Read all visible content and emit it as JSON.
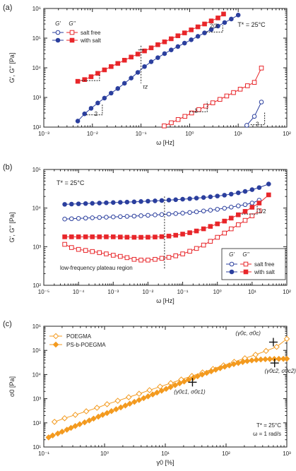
{
  "colors": {
    "blue": "#2b3f9e",
    "red": "#e8262a",
    "orange": "#f39a1f",
    "axis": "#222222"
  },
  "panels": [
    {
      "id": "a",
      "panel_label": "(a)",
      "xlabel": "ω [Hz]",
      "ylabel": "G', G'' [Pa]",
      "annotation": "T* = 25°C",
      "legend_header": [
        "G'",
        "G''"
      ],
      "legend_rows": [
        {
          "label": "salt free",
          "color": "#2b3f9e",
          "color2": "#e8262a",
          "filled": false
        },
        {
          "label": "with salt",
          "color": "#2b3f9e",
          "color2": "#e8262a",
          "filled": true
        }
      ],
      "extra_labels": [
        "τz"
      ],
      "slope_labels": [
        "2",
        "1",
        "2",
        "2/3"
      ],
      "chart_data": {
        "type": "line",
        "xscale": "log",
        "yscale": "log",
        "xlim": [
          0.001,
          100
        ],
        "ylim": [
          100,
          1000000
        ],
        "xticks": [
          "10⁻³",
          "10⁻²",
          "10⁻¹",
          "10⁰",
          "10¹",
          "10²"
        ],
        "yticks": [
          "10²",
          "10³",
          "10⁴",
          "10⁵",
          "10⁶"
        ],
        "series": [
          {
            "modulus": "G'",
            "condition": "with salt",
            "marker": "circle",
            "filled": true,
            "color": "#2b3f9e",
            "x": [
              0.005,
              0.0069,
              0.0094,
              0.0129,
              0.0177,
              0.0243,
              0.0333,
              0.0457,
              0.0627,
              0.086,
              0.118,
              0.162,
              0.222,
              0.305,
              0.418,
              0.574,
              0.787,
              1.08,
              1.48,
              2.03,
              2.79,
              3.83,
              5.25,
              7.2,
              10
            ],
            "y": [
              160,
              280,
              430,
              650,
              950,
              1400,
              2000,
              3000,
              4500,
              7000,
              11000,
              16000,
              22000,
              30000,
              40000,
              52000,
              68000,
              88000,
              115000,
              150000,
              195000,
              255000,
              335000,
              440000,
              600000
            ]
          },
          {
            "modulus": "G''",
            "condition": "with salt",
            "marker": "square",
            "filled": true,
            "color": "#e8262a",
            "x": [
              0.005,
              0.0069,
              0.0094,
              0.0129,
              0.0177,
              0.0243,
              0.0333,
              0.0457,
              0.0627,
              0.086,
              0.118,
              0.162,
              0.222,
              0.305,
              0.418,
              0.574,
              0.787,
              1.08,
              1.48,
              2.03,
              2.79,
              3.83,
              5.0
            ],
            "y": [
              3500,
              4000,
              5000,
              6500,
              8500,
              11000,
              14000,
              18000,
              23000,
              29000,
              37000,
              47000,
              60000,
              75000,
              95000,
              120000,
              150000,
              190000,
              240000,
              300000,
              380000,
              480000,
              650000
            ]
          },
          {
            "modulus": "G''",
            "condition": "salt free",
            "marker": "square",
            "filled": false,
            "color": "#e8262a",
            "x": [
              0.3,
              0.42,
              0.58,
              0.8,
              1.1,
              1.55,
              2.15,
              3.0,
              4.2,
              5.8,
              8.0,
              11,
              15.5,
              21.5,
              30
            ],
            "y": [
              110,
              140,
              180,
              230,
              300,
              390,
              510,
              660,
              860,
              1120,
              1460,
              1900,
              2480,
              3220,
              9800
            ]
          },
          {
            "modulus": "G'",
            "condition": "salt free",
            "marker": "circle",
            "filled": false,
            "color": "#2b3f9e",
            "x": [
              15,
              21.5,
              30
            ],
            "y": [
              115,
              230,
              700
            ]
          }
        ]
      }
    },
    {
      "id": "b",
      "panel_label": "(b)",
      "xlabel": "ω [Hz]",
      "ylabel": "G', G'' [Pa]",
      "annotation": "T* = 25°C",
      "region_label": "low-frequency plateau region",
      "legend_header": [
        "G'",
        "G''"
      ],
      "legend_rows": [
        {
          "label": "salt free",
          "color": "#2b3f9e",
          "color2": "#e8262a",
          "filled": false
        },
        {
          "label": "with salt",
          "color": "#2b3f9e",
          "color2": "#e8262a",
          "filled": true
        }
      ],
      "slope_labels": [
        "1/2"
      ],
      "chart_data": {
        "type": "line",
        "xscale": "log",
        "yscale": "log",
        "xlim": [
          1e-05,
          100
        ],
        "ylim": [
          100,
          100000
        ],
        "xticks": [
          "10⁻⁵",
          "10⁻⁴",
          "10⁻³",
          "10⁻²",
          "10⁻¹",
          "10⁰",
          "10¹",
          "10²"
        ],
        "yticks": [
          "10²",
          "10³",
          "10⁴",
          "10⁵"
        ],
        "series": [
          {
            "modulus": "G'",
            "condition": "with salt",
            "marker": "circle",
            "filled": true,
            "color": "#2b3f9e",
            "x": [
              4e-05,
              6.3e-05,
              0.0001,
              0.00016,
              0.00025,
              0.0004,
              0.00063,
              0.001,
              0.0016,
              0.0025,
              0.004,
              0.0063,
              0.01,
              0.016,
              0.025,
              0.04,
              0.063,
              0.1,
              0.16,
              0.25,
              0.4,
              0.63,
              1.0,
              1.6,
              2.5,
              4.0,
              6.3,
              10,
              16,
              30
            ],
            "y": [
              12500,
              12700,
              12900,
              13100,
              13300,
              13500,
              13700,
              13900,
              14100,
              14300,
              14500,
              14800,
              15100,
              15400,
              15700,
              16100,
              16500,
              17000,
              17500,
              18100,
              18800,
              19600,
              20500,
              21600,
              23000,
              24800,
              27000,
              30000,
              34000,
              42000
            ]
          },
          {
            "modulus": "G'",
            "condition": "salt free",
            "marker": "circle",
            "filled": false,
            "color": "#2b3f9e",
            "x": [
              4e-05,
              6.3e-05,
              0.0001,
              0.00016,
              0.00025,
              0.0004,
              0.00063,
              0.001,
              0.0016,
              0.0025,
              0.004,
              0.0063,
              0.01,
              0.016,
              0.025,
              0.04,
              0.063,
              0.1,
              0.16,
              0.25,
              0.4,
              0.63,
              1.0,
              1.6,
              2.5,
              4.0,
              6.3,
              10,
              16
            ],
            "y": [
              5200,
              5300,
              5400,
              5500,
              5600,
              5700,
              5800,
              5900,
              6000,
              6100,
              6200,
              6350,
              6500,
              6650,
              6800,
              7000,
              7200,
              7400,
              7700,
              8000,
              8400,
              8800,
              9300,
              9900,
              10600,
              11400,
              12300,
              13500,
              16000
            ]
          },
          {
            "modulus": "G''",
            "condition": "with salt",
            "marker": "square",
            "filled": true,
            "color": "#e8262a",
            "x": [
              4e-05,
              6.3e-05,
              0.0001,
              0.00016,
              0.00025,
              0.0004,
              0.00063,
              0.001,
              0.0016,
              0.0025,
              0.004,
              0.0063,
              0.01,
              0.016,
              0.025,
              0.04,
              0.063,
              0.1,
              0.16,
              0.25,
              0.4,
              0.63,
              1.0,
              1.6,
              2.5,
              4.0,
              6.3,
              10,
              16,
              30
            ],
            "y": [
              1800,
              1800,
              1800,
              1800,
              1800,
              1800,
              1800,
              1800,
              1780,
              1760,
              1750,
              1750,
              1760,
              1780,
              1820,
              1880,
              1980,
              2120,
              2300,
              2550,
              2900,
              3350,
              3900,
              4600,
              5500,
              6700,
              8200,
              10500,
              13500,
              22000
            ]
          },
          {
            "modulus": "G''",
            "condition": "salt free",
            "marker": "square",
            "filled": false,
            "color": "#e8262a",
            "x": [
              4e-05,
              6.3e-05,
              0.0001,
              0.00016,
              0.00025,
              0.0004,
              0.00063,
              0.001,
              0.0016,
              0.0025,
              0.004,
              0.0063,
              0.01,
              0.016,
              0.025,
              0.04,
              0.063,
              0.1,
              0.16,
              0.25,
              0.4,
              0.63,
              1.0,
              1.6,
              2.5,
              4.0,
              6.3,
              10,
              16
            ],
            "y": [
              1150,
              950,
              850,
              800,
              750,
              700,
              650,
              600,
              560,
              520,
              470,
              450,
              450,
              470,
              500,
              530,
              580,
              650,
              760,
              900,
              1100,
              1380,
              1750,
              2250,
              2900,
              3700,
              4800,
              6300,
              8500
            ]
          }
        ]
      }
    },
    {
      "id": "c",
      "panel_label": "(c)",
      "xlabel": "γ0 [%]",
      "ylabel": "σ0 [Pa]",
      "annotation_lines": [
        "T* = 25°C",
        "ω = 1 rad/s"
      ],
      "legend_rows": [
        {
          "label": "POEGMA",
          "color": "#f39a1f",
          "filled": false
        },
        {
          "label": "PS-b-POEGMA",
          "color": "#f39a1f",
          "filled": true
        }
      ],
      "point_labels": [
        "(γ0c, σ0c)",
        "(γ0c2, σ0c2)",
        "(γ0c1, σ0c1)"
      ],
      "chart_data": {
        "type": "scatter",
        "xscale": "log",
        "yscale": "log",
        "xlim": [
          0.1,
          1000
        ],
        "ylim": [
          10,
          1000000
        ],
        "xticks": [
          "10⁻¹",
          "10⁰",
          "10¹",
          "10²",
          "10³"
        ],
        "yticks": [
          "10¹",
          "10²",
          "10³",
          "10⁴",
          "10⁵",
          "10⁶"
        ],
        "series": [
          {
            "name": "POEGMA",
            "marker": "diamond",
            "filled": false,
            "color": "#f39a1f",
            "x": [
              0.15,
              0.22,
              0.33,
              0.5,
              0.75,
              1.1,
              1.65,
              2.5,
              3.7,
              5.5,
              8.2,
              12.3,
              18.3,
              27.4,
              41,
              61,
              91,
              136,
              204,
              305,
              455,
              680,
              1000
            ],
            "y": [
              110,
              155,
              215,
              300,
              420,
              590,
              820,
              1150,
              1600,
              2250,
              3150,
              4400,
              6200,
              8700,
              12200,
              17000,
              24000,
              33500,
              47000,
              66000,
              95000,
              140000,
              300000
            ]
          },
          {
            "name": "PS-b-POEGMA",
            "marker": "diamond",
            "filled": true,
            "color": "#f39a1f",
            "x": [
              0.12,
              0.14,
              0.17,
              0.2,
              0.24,
              0.28,
              0.33,
              0.39,
              0.47,
              0.56,
              0.66,
              0.79,
              0.93,
              1.1,
              1.3,
              1.55,
              1.85,
              2.2,
              2.6,
              3.1,
              3.7,
              4.4,
              5.2,
              6.2,
              7.3,
              8.7,
              10.3,
              12.2,
              14.5,
              17.2,
              20.4,
              24.2,
              28.7,
              34,
              40.4,
              48,
              57,
              67.5,
              80,
              95,
              113,
              134,
              159,
              188,
              223,
              265,
              315,
              373,
              443,
              525,
              623,
              740,
              878,
              1000
            ],
            "y": [
              25,
              30,
              36,
              43,
              52,
              62,
              74,
              88,
              105,
              125,
              150,
              180,
              215,
              255,
              305,
              365,
              435,
              520,
              620,
              740,
              880,
              1050,
              1250,
              1500,
              1790,
              2130,
              2540,
              3030,
              3620,
              4320,
              5150,
              6100,
              7200,
              8500,
              10000,
              11700,
              13600,
              15800,
              18300,
              21000,
              24000,
              27000,
              30000,
              33000,
              36000,
              38500,
              40500,
              42000,
              43000,
              43800,
              44200,
              44500,
              44700,
              45000
            ]
          }
        ],
        "markers": [
          {
            "x": 600,
            "y": 220000,
            "label_index": 0
          },
          {
            "x": 630,
            "y": 30000,
            "label_index": 1
          },
          {
            "x": 28,
            "y": 4800,
            "label_index": 2
          }
        ]
      }
    }
  ]
}
